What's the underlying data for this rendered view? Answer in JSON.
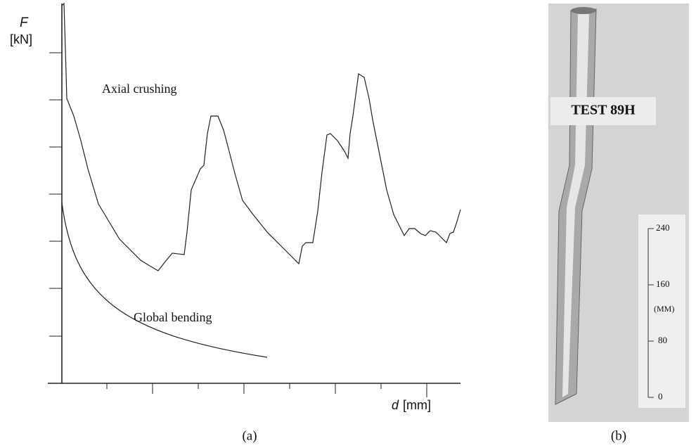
{
  "figure_a": {
    "y_symbol": "F",
    "y_unit": "[kN]",
    "curve_labels": [
      "Axial crushing",
      "Global bending"
    ],
    "x_symbol": "d",
    "x_unit": "[mm]",
    "caption": "(a)"
  },
  "figure_b": {
    "label": "TEST 89H",
    "scale_ticks": [
      "240",
      "160",
      "(MM)",
      "80",
      "0"
    ],
    "caption": "(b)"
  }
}
